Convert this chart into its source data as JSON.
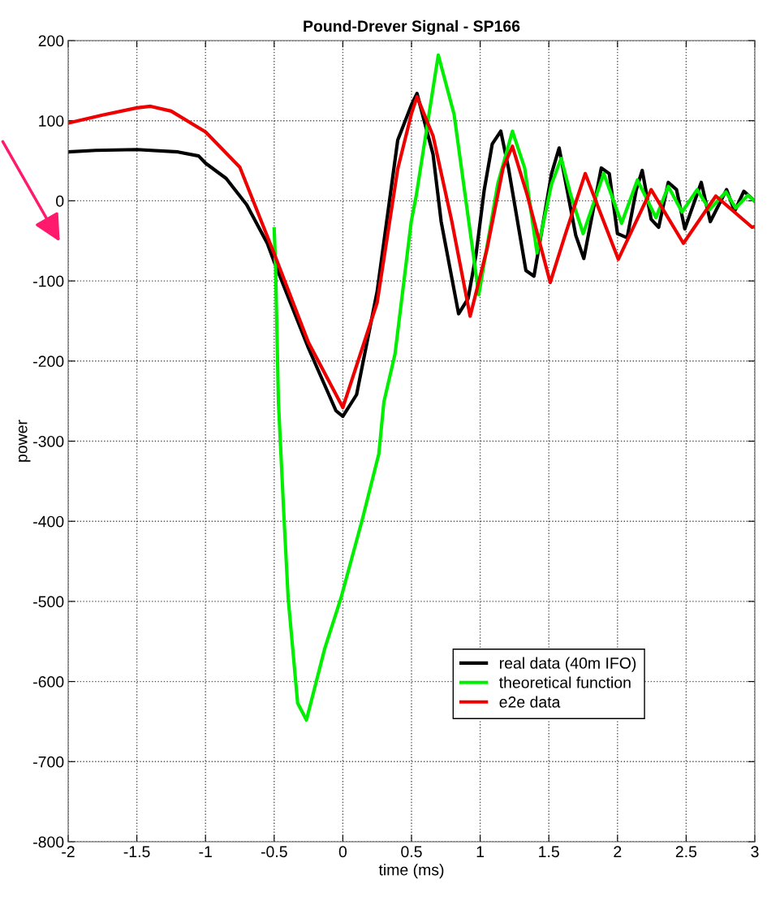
{
  "chart_data": {
    "type": "line",
    "title": "Pound-Drever Signal - SP166",
    "xlabel": "time (ms)",
    "ylabel": "power",
    "xlim": [
      -2,
      3
    ],
    "xticks": [
      -2,
      -1.5,
      -1,
      -0.5,
      0,
      0.5,
      1,
      1.5,
      2,
      2.5,
      3
    ],
    "ylim": [
      -800,
      200
    ],
    "yticks": [
      -800,
      -700,
      -600,
      -500,
      -400,
      -300,
      -200,
      -100,
      0,
      100,
      200
    ],
    "grid": true,
    "legend": "bottom right",
    "line_style": "solid",
    "marker": "none",
    "series": [
      {
        "name": "real data (40m IFO)",
        "color": "#000000",
        "x": [
          -2,
          -1.8,
          -1.5,
          -1.2,
          -1.05,
          -1,
          -0.85,
          -0.7,
          -0.55,
          -0.5,
          -0.25,
          -0.05,
          0,
          0.1,
          0.25,
          0.4,
          0.5,
          0.54,
          0.657,
          0.716,
          0.843,
          0.912,
          0.97,
          1.03,
          1.088,
          1.15,
          1.206,
          1.333,
          1.392,
          1.52,
          1.575,
          1.696,
          1.755,
          1.882,
          1.94,
          2.0,
          2.07,
          2.137,
          2.18,
          2.245,
          2.3,
          2.37,
          2.43,
          2.49,
          2.61,
          2.676,
          2.794,
          2.853,
          2.92,
          2.99
        ],
        "values": [
          61,
          63,
          64,
          61,
          56,
          47,
          28,
          -5,
          -53,
          -76,
          -184,
          -262,
          -269,
          -242,
          -113,
          76,
          120,
          134,
          58,
          -26,
          -141,
          -122,
          -67,
          14,
          71,
          87,
          41,
          -87,
          -94,
          34,
          66,
          -43,
          -72,
          41,
          34,
          -41,
          -46,
          14,
          38,
          -23,
          -33,
          23,
          14,
          -35,
          23,
          -26,
          14,
          -13,
          12,
          1
        ]
      },
      {
        "name": "theoretical function",
        "color": "#00ee00",
        "x": [
          -0.5,
          -0.49,
          -0.469,
          -0.428,
          -0.398,
          -0.329,
          -0.265,
          -0.132,
          -0.014,
          0.143,
          0.262,
          0.299,
          0.38,
          0.498,
          0.535,
          0.695,
          0.81,
          0.99,
          1.128,
          1.235,
          1.324,
          1.414,
          1.52,
          1.59,
          1.66,
          1.75,
          1.9,
          2.03,
          2.145,
          2.28,
          2.37,
          2.47,
          2.58,
          2.67,
          2.79,
          2.86,
          2.95,
          3.0
        ],
        "values": [
          -35,
          -80,
          -251,
          -397,
          -496,
          -627,
          -648,
          -559,
          -496,
          -397,
          -316,
          -251,
          -191,
          -26,
          7,
          182,
          108,
          -117,
          21,
          87,
          41,
          -65,
          21,
          53,
          7,
          -41,
          34,
          -28,
          26,
          -21,
          18,
          -14,
          14,
          -11,
          11,
          -9,
          7,
          -1
        ]
      },
      {
        "name": "e2e data",
        "color": "#ee0000",
        "x": [
          -2,
          -1.75,
          -1.5,
          -1.4,
          -1.25,
          -1,
          -0.75,
          -0.5,
          -0.25,
          0,
          0.25,
          0.4,
          0.5,
          0.54,
          0.657,
          0.794,
          0.927,
          1.05,
          1.167,
          1.235,
          1.343,
          1.51,
          1.618,
          1.765,
          2.006,
          2.245,
          2.48,
          2.716,
          2.98,
          3.0
        ],
        "values": [
          97,
          107,
          116,
          118,
          112,
          86,
          42,
          -66,
          -177,
          -258,
          -127,
          40,
          109,
          130,
          81,
          -26,
          -144,
          -60,
          41,
          68,
          7,
          -102,
          -43,
          34,
          -73,
          14,
          -53,
          6,
          -33,
          -32
        ]
      }
    ]
  }
}
